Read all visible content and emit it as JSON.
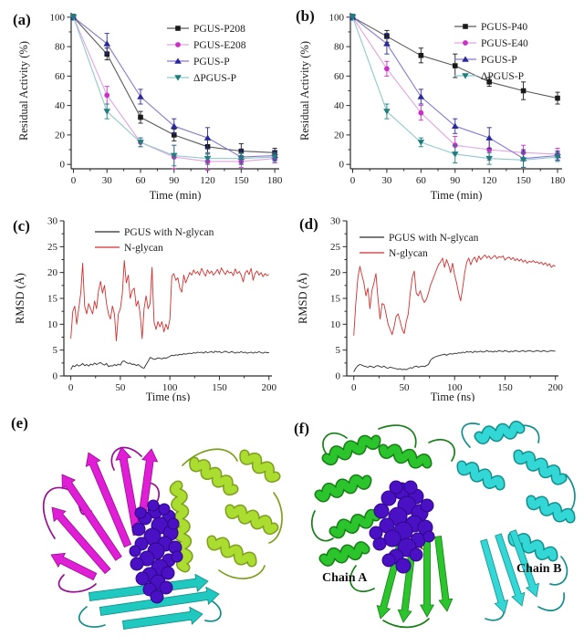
{
  "figure": {
    "background": "#ffffff",
    "panels": {
      "a": {
        "label": "(a)"
      },
      "b": {
        "label": "(b)"
      },
      "c": {
        "label": "(c)"
      },
      "d": {
        "label": "(d)"
      },
      "e": {
        "label": "(e)"
      },
      "f": {
        "label": "(f)"
      }
    }
  },
  "chart_data": [
    {
      "id": "a",
      "type": "line",
      "xlabel": "Time (min)",
      "ylabel": "Residual Activity (%)",
      "xlim": [
        0,
        180
      ],
      "ylim": [
        0,
        100
      ],
      "xticks": [
        0,
        30,
        60,
        90,
        120,
        150,
        180
      ],
      "yticks": [
        0,
        20,
        40,
        60,
        80,
        100
      ],
      "grid": false,
      "legend_position": "top-right",
      "series": [
        {
          "name": "PGUS-P208",
          "marker": "square",
          "marker_color": "#1a1a1a",
          "line_color": "#5a5a5a",
          "x": [
            0,
            30,
            60,
            90,
            120,
            150,
            180
          ],
          "y": [
            100,
            75,
            32,
            20,
            12,
            9,
            8
          ],
          "err": [
            2,
            4,
            4,
            4,
            5,
            5,
            3
          ]
        },
        {
          "name": "PGUS-E208",
          "marker": "circle",
          "marker_color": "#cb30c4",
          "line_color": "#e2a3e0",
          "x": [
            0,
            30,
            60,
            90,
            120,
            150,
            180
          ],
          "y": [
            100,
            47,
            15,
            5,
            2,
            2,
            4
          ],
          "err": [
            2,
            6,
            3,
            8,
            6,
            4,
            3
          ]
        },
        {
          "name": "PGUS-P",
          "marker": "triangle-up",
          "marker_color": "#29299b",
          "line_color": "#8677cd",
          "x": [
            0,
            30,
            60,
            90,
            120,
            150,
            180
          ],
          "y": [
            100,
            82,
            46,
            26,
            18,
            5,
            6
          ],
          "err": [
            2,
            7,
            5,
            5,
            7,
            5,
            3
          ]
        },
        {
          "name": "ΔPGUS-P",
          "marker": "triangle-down",
          "marker_color": "#1e7e7e",
          "line_color": "#8fc9c9",
          "x": [
            0,
            30,
            60,
            90,
            120,
            150,
            180
          ],
          "y": [
            100,
            36,
            15,
            6,
            4,
            4,
            5
          ],
          "err": [
            2,
            5,
            3,
            7,
            4,
            4,
            3
          ]
        }
      ]
    },
    {
      "id": "b",
      "type": "line",
      "xlabel": "Time (min)",
      "ylabel": "Residual Activity (%)",
      "xlim": [
        0,
        180
      ],
      "ylim": [
        0,
        100
      ],
      "xticks": [
        0,
        30,
        60,
        90,
        120,
        150,
        180
      ],
      "yticks": [
        0,
        20,
        40,
        60,
        80,
        100
      ],
      "grid": false,
      "legend_position": "top-right",
      "series": [
        {
          "name": "PGUS-P40",
          "marker": "square",
          "marker_color": "#1a1a1a",
          "line_color": "#5a5a5a",
          "x": [
            0,
            30,
            60,
            90,
            120,
            150,
            180
          ],
          "y": [
            100,
            87,
            74,
            67,
            56,
            50,
            45
          ],
          "err": [
            2,
            4,
            5,
            8,
            3,
            6,
            4
          ]
        },
        {
          "name": "PGUS-E40",
          "marker": "circle",
          "marker_color": "#cb30c4",
          "line_color": "#e2a3e0",
          "x": [
            0,
            30,
            60,
            90,
            120,
            150,
            180
          ],
          "y": [
            100,
            65,
            35,
            13,
            10,
            8,
            7
          ],
          "err": [
            2,
            5,
            5,
            6,
            7,
            5,
            4
          ]
        },
        {
          "name": "PGUS-P",
          "marker": "triangle-up",
          "marker_color": "#29299b",
          "line_color": "#8677cd",
          "x": [
            0,
            30,
            60,
            90,
            120,
            150,
            180
          ],
          "y": [
            100,
            82,
            46,
            26,
            18,
            4,
            6
          ],
          "err": [
            2,
            7,
            5,
            5,
            7,
            6,
            3
          ]
        },
        {
          "name": "ΔPGUS-P",
          "marker": "triangle-down",
          "marker_color": "#1e7e7e",
          "line_color": "#8fc9c9",
          "x": [
            0,
            30,
            60,
            90,
            120,
            150,
            180
          ],
          "y": [
            100,
            36,
            15,
            7,
            4,
            3,
            5
          ],
          "err": [
            2,
            5,
            3,
            6,
            4,
            5,
            3
          ]
        }
      ]
    },
    {
      "id": "c",
      "type": "line",
      "xlabel": "Time (ns)",
      "ylabel": "RMSD (Å)",
      "xlim": [
        0,
        200
      ],
      "ylim": [
        0,
        30
      ],
      "xticks": [
        0,
        50,
        100,
        150,
        200
      ],
      "yticks": [
        0,
        5,
        10,
        15,
        20,
        25,
        30
      ],
      "grid": false,
      "legend_position": "top-left",
      "series": [
        {
          "name": "PGUS with N-glycan",
          "marker": "none",
          "line_color": "#2b2b2b",
          "x_start": 0,
          "x_step": 2,
          "y": [
            1.2,
            2.0,
            1.8,
            2.2,
            1.9,
            2.1,
            2.4,
            2.0,
            2.2,
            1.9,
            2.3,
            2.1,
            2.5,
            2.2,
            2.4,
            2.6,
            2.3,
            2.1,
            2.4,
            1.8,
            2.0,
            1.9,
            2.2,
            2.0,
            2.3,
            2.1,
            2.8,
            2.9,
            2.6,
            2.4,
            2.5,
            2.2,
            2.3,
            2.0,
            2.2,
            1.9,
            1.6,
            1.5,
            2.2,
            2.8,
            3.6,
            3.4,
            3.2,
            3.3,
            3.5,
            3.4,
            3.3,
            3.5,
            3.4,
            3.6,
            3.8,
            4.0,
            3.9,
            4.1,
            4.0,
            4.2,
            4.1,
            4.3,
            4.2,
            4.3,
            4.4,
            4.3,
            4.5,
            4.4,
            4.6,
            4.5,
            4.6,
            4.4,
            4.7,
            4.5,
            4.6,
            4.7,
            4.5,
            4.8,
            4.6,
            4.7,
            4.5,
            4.6,
            4.8,
            4.6,
            4.5,
            4.7,
            4.6,
            4.4,
            4.6,
            4.5,
            4.7,
            4.5,
            4.6,
            4.4,
            4.5,
            4.6,
            4.4,
            4.6,
            4.5,
            4.7,
            4.5,
            4.4,
            4.6,
            4.5,
            4.5
          ]
        },
        {
          "name": "N-glycan",
          "marker": "none",
          "line_color": "#d42f2f",
          "x_start": 0,
          "x_step": 2,
          "y": [
            7.2,
            12.5,
            13.5,
            10.0,
            13.0,
            16.0,
            21.8,
            13.5,
            12.0,
            14.0,
            13.0,
            12.0,
            14.5,
            13.0,
            16.5,
            18.3,
            16.0,
            17.5,
            14.0,
            12.0,
            11.0,
            13.5,
            12.0,
            6.8,
            12.0,
            13.0,
            16.0,
            22.3,
            18.0,
            19.5,
            15.0,
            16.5,
            17.0,
            13.5,
            14.5,
            12.0,
            7.2,
            13.0,
            15.5,
            13.0,
            14.0,
            21.0,
            10.5,
            9.0,
            10.5,
            9.5,
            10.5,
            8.5,
            10.0,
            9.0,
            11.0,
            19.3,
            19.8,
            18.5,
            19.0,
            17.0,
            16.2,
            19.5,
            18.0,
            19.0,
            20.0,
            19.5,
            20.5,
            19.8,
            20.2,
            19.5,
            20.8,
            20.0,
            19.3,
            20.5,
            19.8,
            20.3,
            19.5,
            20.0,
            20.6,
            19.7,
            20.9,
            20.2,
            19.6,
            20.4,
            19.9,
            20.1,
            19.4,
            20.7,
            19.8,
            20.2,
            19.5,
            18.2,
            19.9,
            20.4,
            19.6,
            20.8,
            18.5,
            19.8,
            20.3,
            19.5,
            20.0,
            19.2,
            19.8,
            19.4,
            19.6
          ]
        }
      ]
    },
    {
      "id": "d",
      "type": "line",
      "xlabel": "Time (ns)",
      "ylabel": "RMSD (Å)",
      "xlim": [
        0,
        200
      ],
      "ylim": [
        0,
        30
      ],
      "xticks": [
        0,
        50,
        100,
        150,
        200
      ],
      "yticks": [
        0,
        5,
        10,
        15,
        20,
        25,
        30
      ],
      "grid": false,
      "legend_position": "top-left",
      "series": [
        {
          "name": "PGUS with N-glycan",
          "marker": "none",
          "line_color": "#2b2b2b",
          "x_start": 0,
          "x_step": 2,
          "y": [
            0.8,
            1.5,
            2.0,
            2.2,
            2.1,
            1.9,
            1.8,
            1.7,
            1.9,
            1.8,
            1.6,
            1.9,
            2.0,
            1.8,
            1.7,
            1.9,
            1.6,
            1.5,
            1.7,
            1.6,
            1.5,
            1.4,
            1.3,
            1.4,
            1.2,
            1.3,
            1.2,
            1.4,
            1.6,
            1.5,
            1.8,
            1.9,
            1.7,
            1.8,
            1.9,
            1.8,
            2.0,
            2.2,
            3.0,
            3.4,
            3.6,
            3.8,
            3.9,
            4.0,
            4.1,
            4.2,
            4.0,
            4.2,
            4.3,
            4.2,
            4.4,
            4.3,
            4.5,
            4.4,
            4.6,
            4.5,
            4.7,
            4.6,
            4.7,
            4.5,
            4.8,
            4.6,
            4.7,
            4.8,
            4.6,
            4.7,
            4.9,
            4.7,
            4.8,
            4.6,
            4.8,
            4.7,
            4.9,
            4.8,
            4.7,
            4.9,
            4.8,
            4.6,
            4.8,
            4.7,
            4.9,
            4.8,
            4.7,
            4.8,
            4.9,
            4.7,
            4.8,
            4.9,
            4.8,
            4.7,
            4.8,
            4.9,
            4.8,
            4.7,
            4.9,
            4.8,
            4.7,
            4.8,
            4.9,
            4.8,
            4.8
          ]
        },
        {
          "name": "N-glycan",
          "marker": "none",
          "line_color": "#d42f2f",
          "x_start": 0,
          "x_step": 2,
          "y": [
            7.8,
            14.0,
            19.0,
            21.2,
            19.5,
            18.0,
            15.5,
            17.0,
            13.0,
            16.5,
            18.0,
            19.8,
            15.0,
            11.0,
            14.0,
            13.8,
            12.0,
            10.0,
            9.0,
            8.0,
            9.5,
            11.5,
            12.0,
            10.5,
            9.0,
            8.2,
            10.5,
            12.0,
            16.0,
            19.0,
            20.3,
            16.0,
            15.5,
            16.5,
            15.0,
            14.2,
            14.8,
            16.0,
            17.5,
            18.5,
            19.5,
            20.5,
            21.5,
            22.0,
            22.8,
            21.0,
            22.5,
            21.5,
            20.0,
            21.8,
            19.5,
            18.0,
            16.0,
            14.5,
            17.0,
            20.0,
            22.0,
            22.8,
            21.5,
            22.5,
            23.0,
            22.0,
            23.2,
            22.5,
            23.0,
            23.4,
            22.8,
            23.2,
            22.6,
            23.0,
            23.3,
            22.7,
            23.1,
            22.9,
            23.2,
            22.4,
            22.8,
            23.0,
            22.5,
            22.9,
            22.3,
            22.7,
            22.2,
            22.6,
            22.0,
            22.4,
            21.8,
            22.2,
            22.0,
            22.3,
            21.9,
            22.1,
            21.7,
            22.0,
            21.5,
            21.9,
            21.3,
            21.7,
            21.0,
            21.4,
            21.2
          ]
        }
      ]
    }
  ],
  "structures": {
    "e": {
      "glycan_color": "#4a10c4",
      "domain_colors": {
        "sugar_binding": "#e01ed6",
        "barrel_helices": "#abdc30",
        "beta_sheet": "#1fc9c0"
      }
    },
    "f": {
      "chain_a_label": "Chain A",
      "chain_b_label": "Chain B",
      "chain_a_color": "#2cc42c",
      "chain_b_color": "#33d8d6",
      "glycan_color": "#4a10c4"
    }
  }
}
